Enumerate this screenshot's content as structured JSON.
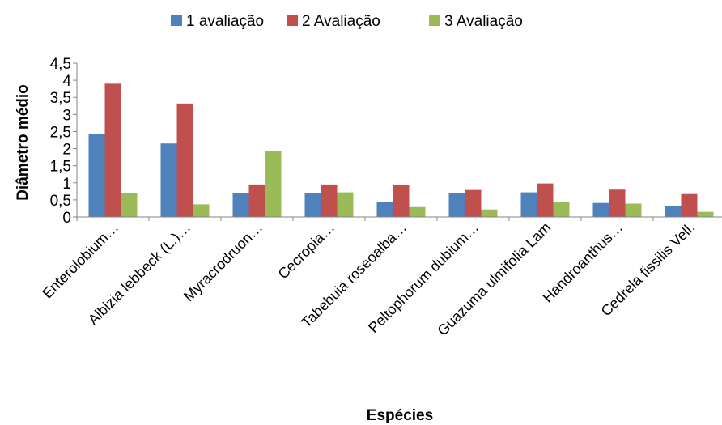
{
  "chart_data": {
    "type": "bar",
    "title": "",
    "xlabel": "Espécies",
    "ylabel": "Diâmetro médio",
    "ylim": [
      0,
      4.5
    ],
    "yticks": [
      "0",
      "0,5",
      "1",
      "1,5",
      "2",
      "2,5",
      "3",
      "3,5",
      "4",
      "4,5"
    ],
    "grid": false,
    "legend_position": "top",
    "categories": [
      "Enterolobium…",
      "Albizia lebbeck (L.)…",
      "Myracrodruon…",
      "Cecropia…",
      "Tabebuia roseoalba…",
      "Peltophorum dubium…",
      "Guazuma ulmifolia Lam",
      "Handroanthus…",
      "Cedrela fissilis Vell."
    ],
    "series": [
      {
        "name": "1 avaliação",
        "color": "#4F81BD",
        "values": [
          2.44,
          2.15,
          0.69,
          0.69,
          0.45,
          0.69,
          0.72,
          0.41,
          0.31
        ]
      },
      {
        "name": "2 Avaliação",
        "color": "#C0504D",
        "values": [
          3.9,
          3.32,
          0.95,
          0.95,
          0.93,
          0.79,
          0.98,
          0.8,
          0.67
        ]
      },
      {
        "name": "3 Avaliação",
        "color": "#9BBB59",
        "values": [
          0.7,
          0.37,
          1.92,
          0.72,
          0.29,
          0.22,
          0.43,
          0.39,
          0.15
        ]
      }
    ]
  }
}
